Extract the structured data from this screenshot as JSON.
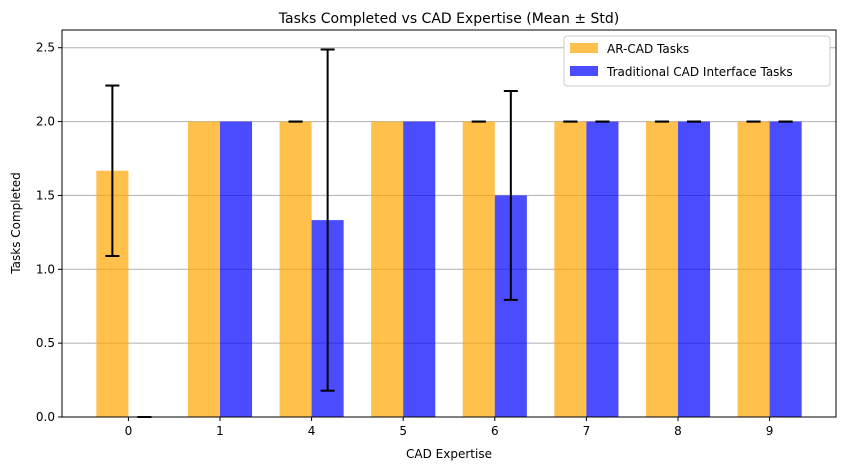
{
  "chart_data": {
    "type": "bar",
    "title": "Tasks Completed vs CAD Expertise (Mean ± Std)",
    "xlabel": "CAD Expertise",
    "ylabel": "Tasks Completed",
    "categories": [
      "0",
      "1",
      "4",
      "5",
      "6",
      "7",
      "8",
      "9"
    ],
    "ylim": [
      0,
      2.62
    ],
    "yticks": [
      "0.0",
      "0.5",
      "1.0",
      "1.5",
      "2.0",
      "2.5"
    ],
    "grid": "y",
    "legend_position": "top-right",
    "series": [
      {
        "name": "AR-CAD Tasks",
        "color": "#ffa500",
        "opacity": 0.7,
        "values": [
          1.667,
          2,
          2,
          2,
          2,
          2,
          2,
          2
        ],
        "std": [
          0.577,
          null,
          0,
          null,
          0,
          0,
          0,
          0
        ]
      },
      {
        "name": "Traditional CAD Interface Tasks",
        "color": "#0000ff",
        "opacity": 0.7,
        "values": [
          0,
          2,
          1.333,
          2,
          1.5,
          2,
          2,
          2
        ],
        "std": [
          0,
          null,
          1.155,
          null,
          0.707,
          0,
          0,
          0
        ]
      }
    ]
  }
}
